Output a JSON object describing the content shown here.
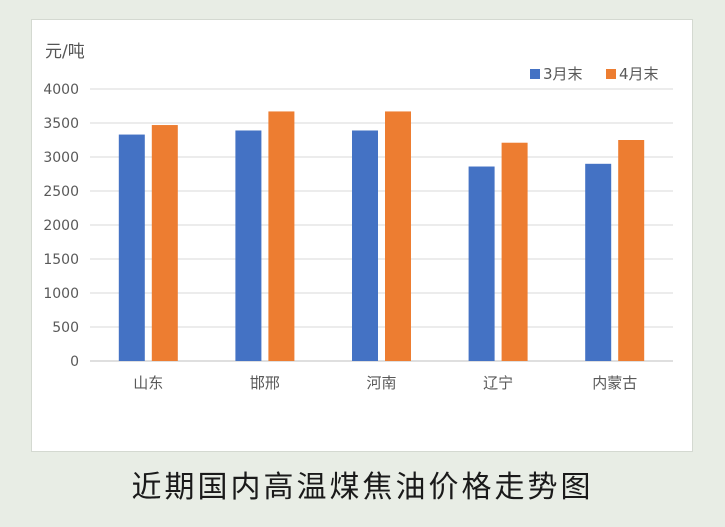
{
  "caption": "近期国内高温煤焦油价格走势图",
  "chart_data": {
    "type": "bar",
    "unit_label": "元/吨",
    "categories": [
      "山东",
      "邯邢",
      "河南",
      "辽宁",
      "内蒙古"
    ],
    "series": [
      {
        "name": "3月末",
        "color": "#4472c4",
        "values": [
          3330,
          3390,
          3390,
          2860,
          2900
        ]
      },
      {
        "name": "4月末",
        "color": "#ed7d31",
        "values": [
          3470,
          3670,
          3670,
          3210,
          3250
        ]
      }
    ],
    "ylim": [
      0,
      4000
    ],
    "yticks": [
      "0",
      "500",
      "1000",
      "1500",
      "2000",
      "2500",
      "3000",
      "3500",
      "4000"
    ],
    "grid": true,
    "legend_position": "top-right"
  }
}
